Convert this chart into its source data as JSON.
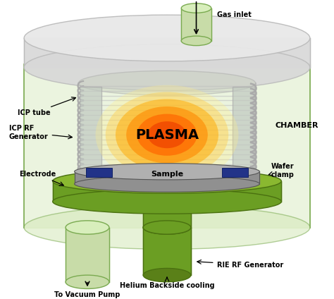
{
  "bg_color": "#ffffff",
  "chamber_color": "#d4e8b8",
  "chamber_edge": "#7aaa50",
  "lid_color": "#d8d8d8",
  "lid_edge": "#bbbbbb",
  "lid_top_color": "#e8e8e8",
  "plasma_colors": [
    "#ffee88",
    "#ffcc44",
    "#ffaa00",
    "#ff8800",
    "#ff6600",
    "#ee4400"
  ],
  "plasma_alphas": [
    0.3,
    0.4,
    0.5,
    0.6,
    0.7,
    0.75
  ],
  "coil_color": "#c0c0c0",
  "coil_edge": "#888888",
  "tube_gray": "#b8c0b0",
  "electrode_green": "#6b9e23",
  "electrode_dark": "#4a7010",
  "electrode_top_color": "#8ab830",
  "sample_color": "#909090",
  "sample_top": "#b0b0b0",
  "clamp_color": "#223388",
  "pedestal_color": "#6b9e23",
  "pedestal_dark": "#4a7010",
  "pedestal_top": "#8ab830",
  "inlet_color": "#c8dca8",
  "inlet_edge": "#7aaa50",
  "vac_color": "#c8dca8",
  "vac_edge": "#7aaa50",
  "plasma_label": "PLASMA",
  "chamber_label": "CHAMBER",
  "label_fs": 7,
  "plasma_fs": 14
}
